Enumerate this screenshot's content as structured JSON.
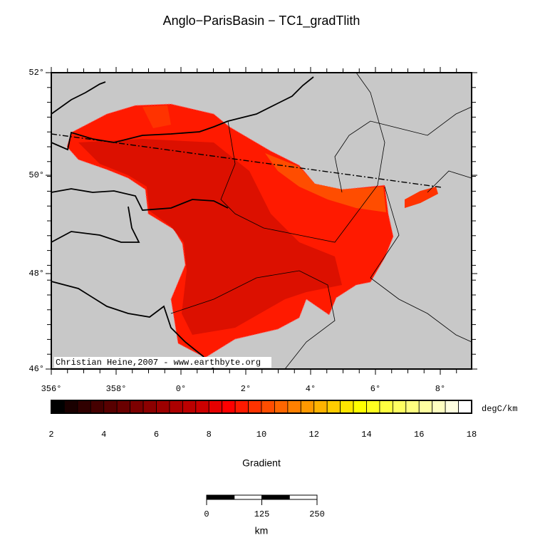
{
  "title": "Anglo−ParisBasin − TC1_gradTlith",
  "map": {
    "lat_labels": [
      "52°",
      "50°",
      "48°",
      "46°"
    ],
    "lon_labels": [
      "356°",
      "358°",
      "0°",
      "2°",
      "4°",
      "6°",
      "8°"
    ],
    "credit": "Christian Heine,2007 - www.earthbyte.org"
  },
  "colorbar": {
    "ticks": [
      "2",
      "4",
      "6",
      "8",
      "10",
      "12",
      "14",
      "16",
      "18"
    ],
    "unit": "degC/km",
    "label": "Gradient",
    "colors": [
      "#000000",
      "#1a0000",
      "#300000",
      "#450000",
      "#580000",
      "#6a0000",
      "#7c0000",
      "#8c0000",
      "#9c0000",
      "#ac0000",
      "#bc0000",
      "#cc0000",
      "#e60000",
      "#ff0000",
      "#ff1a00",
      "#ff3300",
      "#ff4d00",
      "#ff6600",
      "#ff8000",
      "#ff9900",
      "#ffb300",
      "#ffcc00",
      "#ffe600",
      "#ffff00",
      "#ffff20",
      "#ffff40",
      "#ffff60",
      "#ffff80",
      "#ffffa0",
      "#ffffc0",
      "#ffffe0",
      "#ffffff"
    ]
  },
  "scalebar": {
    "ticks": [
      "0",
      "125",
      "250"
    ],
    "unit": "km"
  }
}
